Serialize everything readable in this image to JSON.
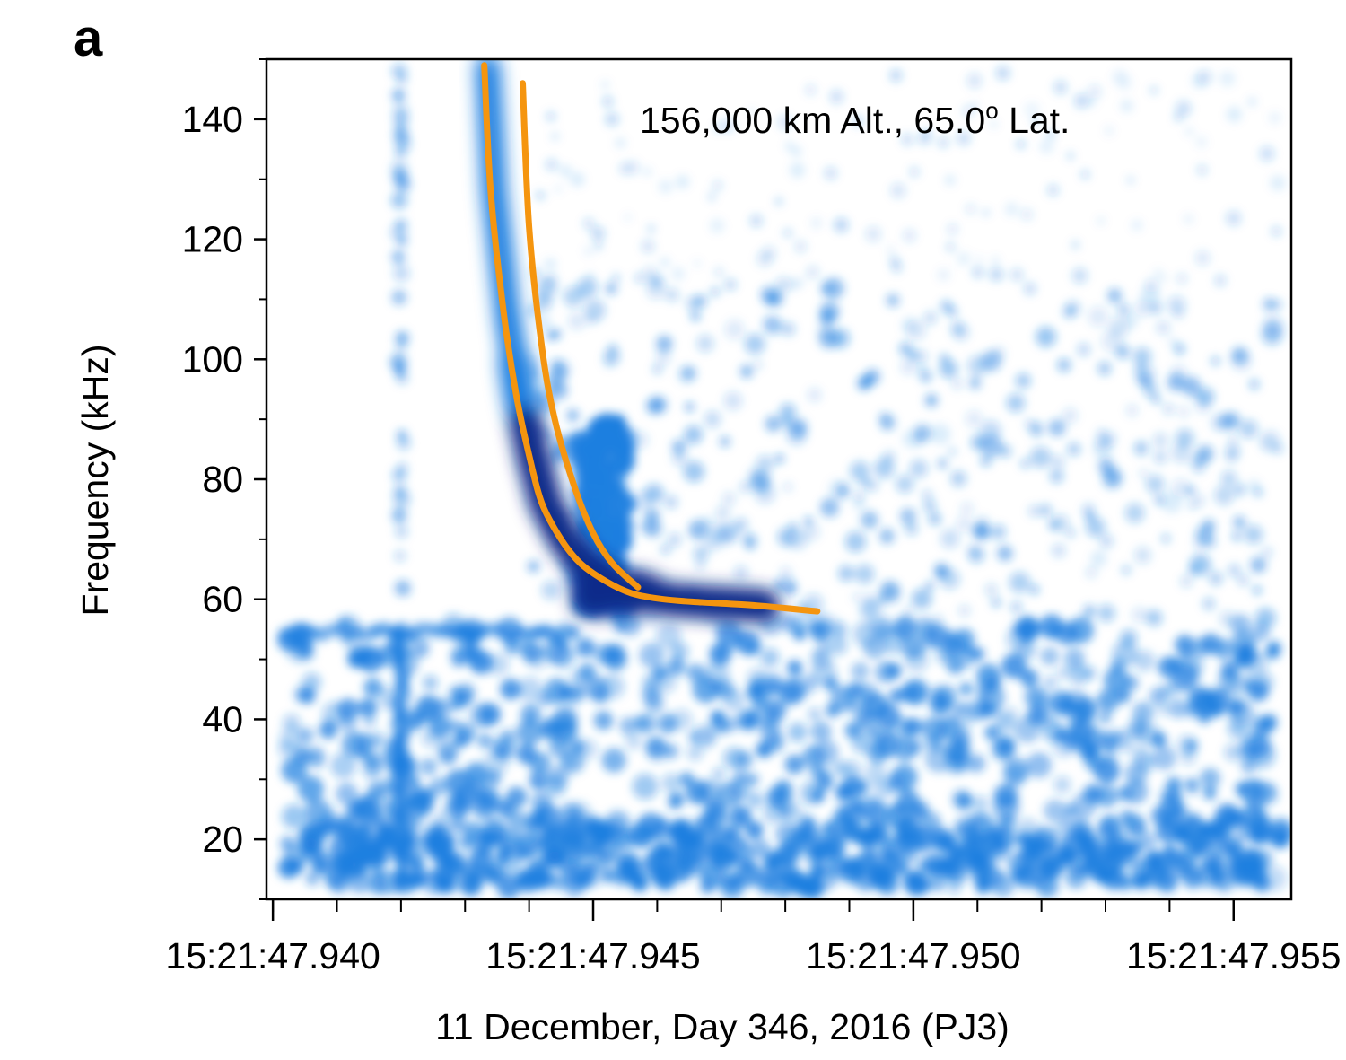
{
  "panel_label": "a",
  "chart_data": {
    "type": "heatmap",
    "title": "",
    "xlabel": "11 December, Day 346, 2016 (PJ3)",
    "ylabel": "Frequency (kHz)",
    "xlim": [
      47.9399,
      47.9559
    ],
    "ylim": [
      10,
      150
    ],
    "x_tick_labels": [
      "15:21:47.940",
      "15:21:47.945",
      "15:21:47.950",
      "15:21:47.955"
    ],
    "x_tick_values": [
      47.94,
      47.945,
      47.95,
      47.955
    ],
    "x_minor_step": 0.001,
    "y_ticks": [
      20,
      40,
      60,
      80,
      100,
      120,
      140
    ],
    "y_minor_step": 10,
    "grid": false,
    "annotation": {
      "text_main": "156,000 km Alt., 65.0",
      "text_sup": "o",
      "text_tail": " Lat."
    },
    "colors": {
      "spectrogram": "#1f7fe0",
      "spectrogram_dark": "#0a2a8a",
      "fit_curve": "#f5950f"
    },
    "series": [
      {
        "type": "curve",
        "x": [
          47.9433,
          47.9434,
          47.9436,
          47.9438,
          47.944,
          47.9442,
          47.9445,
          47.9448,
          47.9452,
          47.9456,
          47.9461,
          47.9467,
          47.9475,
          47.9485
        ],
        "y": [
          149,
          128,
          108,
          94,
          84,
          76,
          70,
          66,
          63,
          61,
          60,
          59.5,
          59,
          58
        ]
      },
      {
        "type": "curve",
        "x": [
          47.9439,
          47.944,
          47.9442,
          47.9444,
          47.9447,
          47.945,
          47.9453,
          47.9457
        ],
        "y": [
          146,
          122,
          102,
          90,
          79,
          71,
          66,
          62
        ]
      }
    ]
  }
}
